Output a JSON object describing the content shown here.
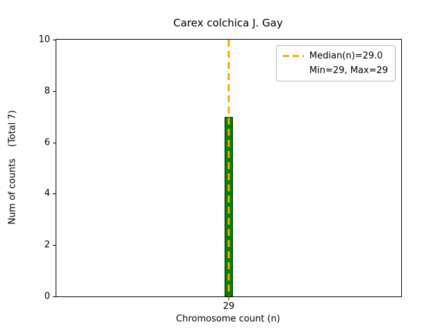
{
  "chart_data": {
    "type": "bar",
    "title": "Carex colchica J. Gay",
    "xlabel": "Chromosome count (n)",
    "ylabel": "Num of counts    (Total 7)",
    "categories": [
      "29"
    ],
    "values": [
      7
    ],
    "total_counts": 7,
    "ylim": [
      0,
      10
    ],
    "yticks": [
      0,
      2,
      4,
      6,
      8,
      10
    ],
    "grid": false,
    "bar_fill_color": "#008000",
    "bar_edge_color": "#0b2e0b",
    "median_line": {
      "x_category": "29",
      "value": 29.0,
      "color": "#ffa500",
      "style": "dashed"
    },
    "legend": {
      "position": "upper right",
      "entries": [
        {
          "swatch": "dashed-line",
          "color": "#ffa500",
          "label": "Median(n)=29.0"
        },
        {
          "swatch": "none",
          "color": "",
          "label": "Min=29, Max=29"
        }
      ]
    },
    "min": 29,
    "max": 29
  }
}
